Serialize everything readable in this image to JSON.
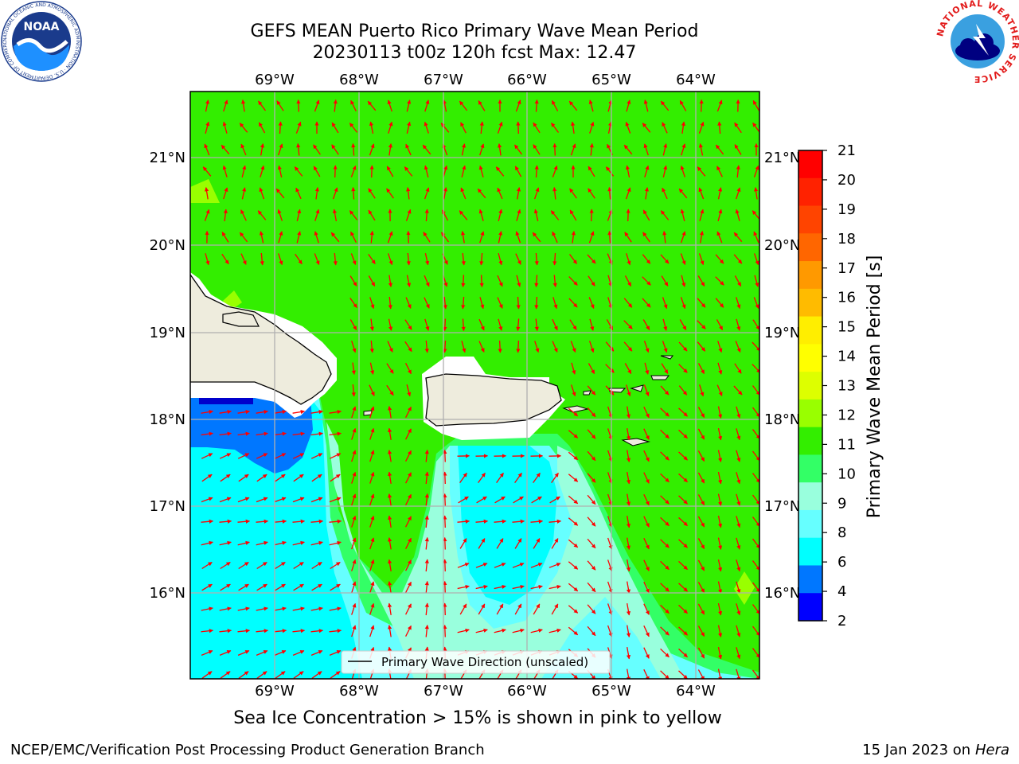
{
  "header": {
    "title_line1": "GEFS MEAN Puerto Rico Primary Wave Mean Period",
    "title_line2": "20230113 t00z 120h fcst   Max: 12.47"
  },
  "map": {
    "lon_labels": [
      "69°W",
      "68°W",
      "67°W",
      "66°W",
      "65°W",
      "64°W"
    ],
    "lat_labels": [
      "21°N",
      "20°N",
      "19°N",
      "18°N",
      "17°N",
      "16°N"
    ],
    "legend_label": "Primary Wave Direction (unscaled)",
    "colors": {
      "green": "#33ee00",
      "light_green": "#66ff33",
      "yellow_green": "#99ff00",
      "mint": "#33ff66",
      "pale_aqua": "#99ffdd",
      "light_cyan": "#66ffff",
      "cyan": "#00ffff",
      "blue": "#0077ff",
      "dark_blue": "#0000ff",
      "land": "#eeecdd",
      "arrow": "#ff0000"
    }
  },
  "colorbar": {
    "label": "Primary Wave Mean Period [s]",
    "ticks": [
      "21",
      "20",
      "19",
      "18",
      "17",
      "16",
      "15",
      "14",
      "13",
      "12",
      "11",
      "10",
      "9",
      "8",
      "6",
      "4",
      "2"
    ],
    "colors": [
      "#ff0000",
      "#ff2200",
      "#ff4400",
      "#ff6600",
      "#ff9900",
      "#ffbb00",
      "#ffee00",
      "#ffff00",
      "#ddff00",
      "#99ff00",
      "#33ee00",
      "#33ff66",
      "#99ffdd",
      "#66ffff",
      "#00ffff",
      "#0077ff",
      "#0000ff"
    ]
  },
  "subtitle": "Sea Ice Concentration > 15% is shown in pink to yellow",
  "footer": {
    "left": "NCEP/EMC/Verification Post Processing Product Generation Branch",
    "right_prefix": "15 Jan 2023 on ",
    "right_machine": "Hera"
  },
  "logos": {
    "noaa": "NOAA",
    "noaa_ring_text": "NATIONAL OCEANIC AND ATMOSPHERIC ADMINISTRATION · U.S. DEPARTMENT OF COMMERCE",
    "nws_ring_text": "NATIONAL WEATHER SERVICE"
  }
}
